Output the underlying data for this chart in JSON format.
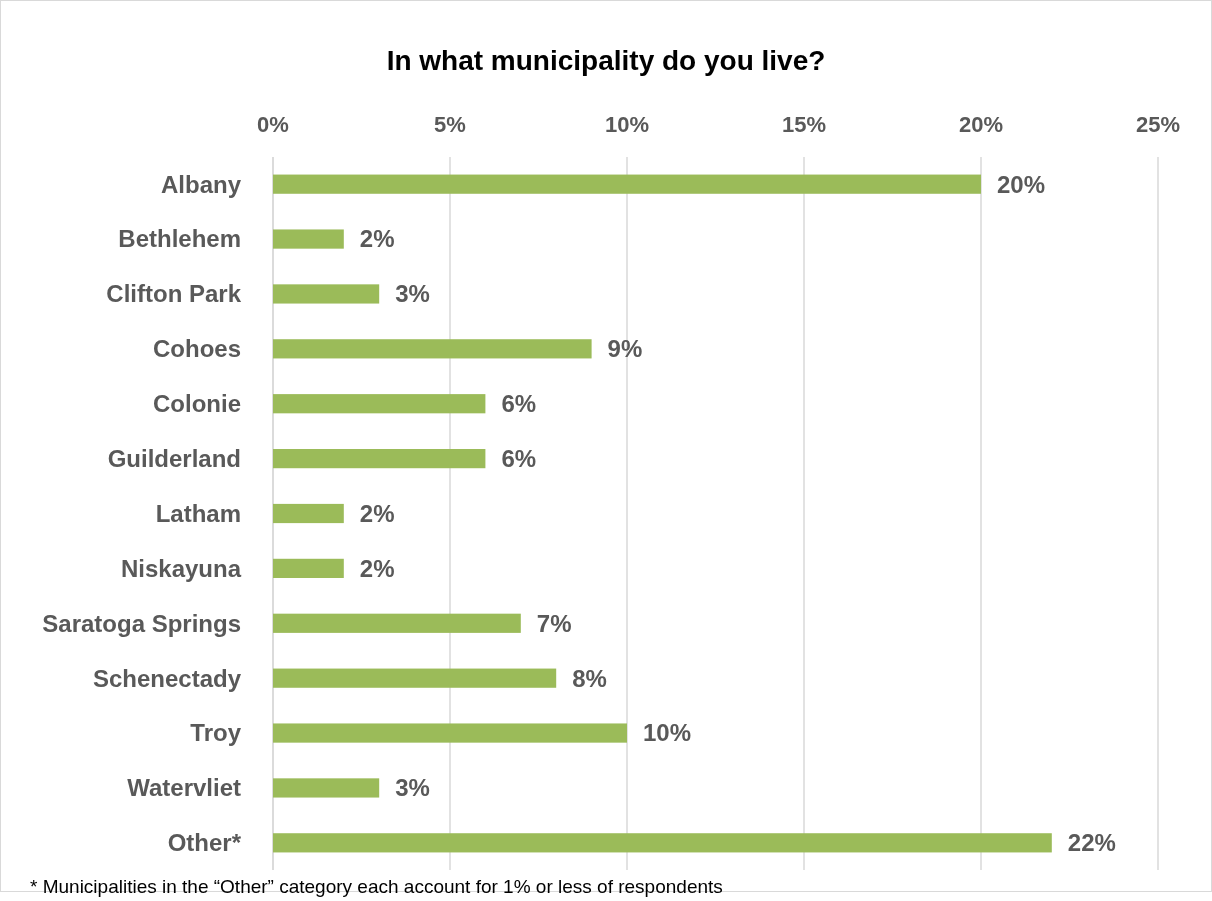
{
  "chart_data": {
    "type": "bar",
    "orientation": "horizontal",
    "title": "In what municipality do you live?",
    "categories": [
      "Albany",
      "Bethlehem",
      "Clifton Park",
      "Cohoes",
      "Colonie",
      "Guilderland",
      "Latham",
      "Niskayuna",
      "Saratoga Springs",
      "Schenectady",
      "Troy",
      "Watervliet",
      "Other*"
    ],
    "values": [
      20,
      2,
      3,
      9,
      6,
      6,
      2,
      2,
      7,
      8,
      10,
      3,
      22
    ],
    "value_labels": [
      "20%",
      "2%",
      "3%",
      "9%",
      "6%",
      "6%",
      "2%",
      "2%",
      "7%",
      "8%",
      "10%",
      "3%",
      "22%"
    ],
    "color": "#9bbb59",
    "xlim": [
      0,
      25
    ],
    "xticks": [
      {
        "value": 0,
        "label": "0%"
      },
      {
        "value": 5,
        "label": "5%"
      },
      {
        "value": 10,
        "label": "10%"
      },
      {
        "value": 15,
        "label": "15%"
      },
      {
        "value": 20,
        "label": "20%"
      },
      {
        "value": 25,
        "label": "25%"
      }
    ],
    "grid": "x",
    "annotations": [
      "* Municipalities in the “Other” category each account for 1% or less of respondents"
    ]
  }
}
